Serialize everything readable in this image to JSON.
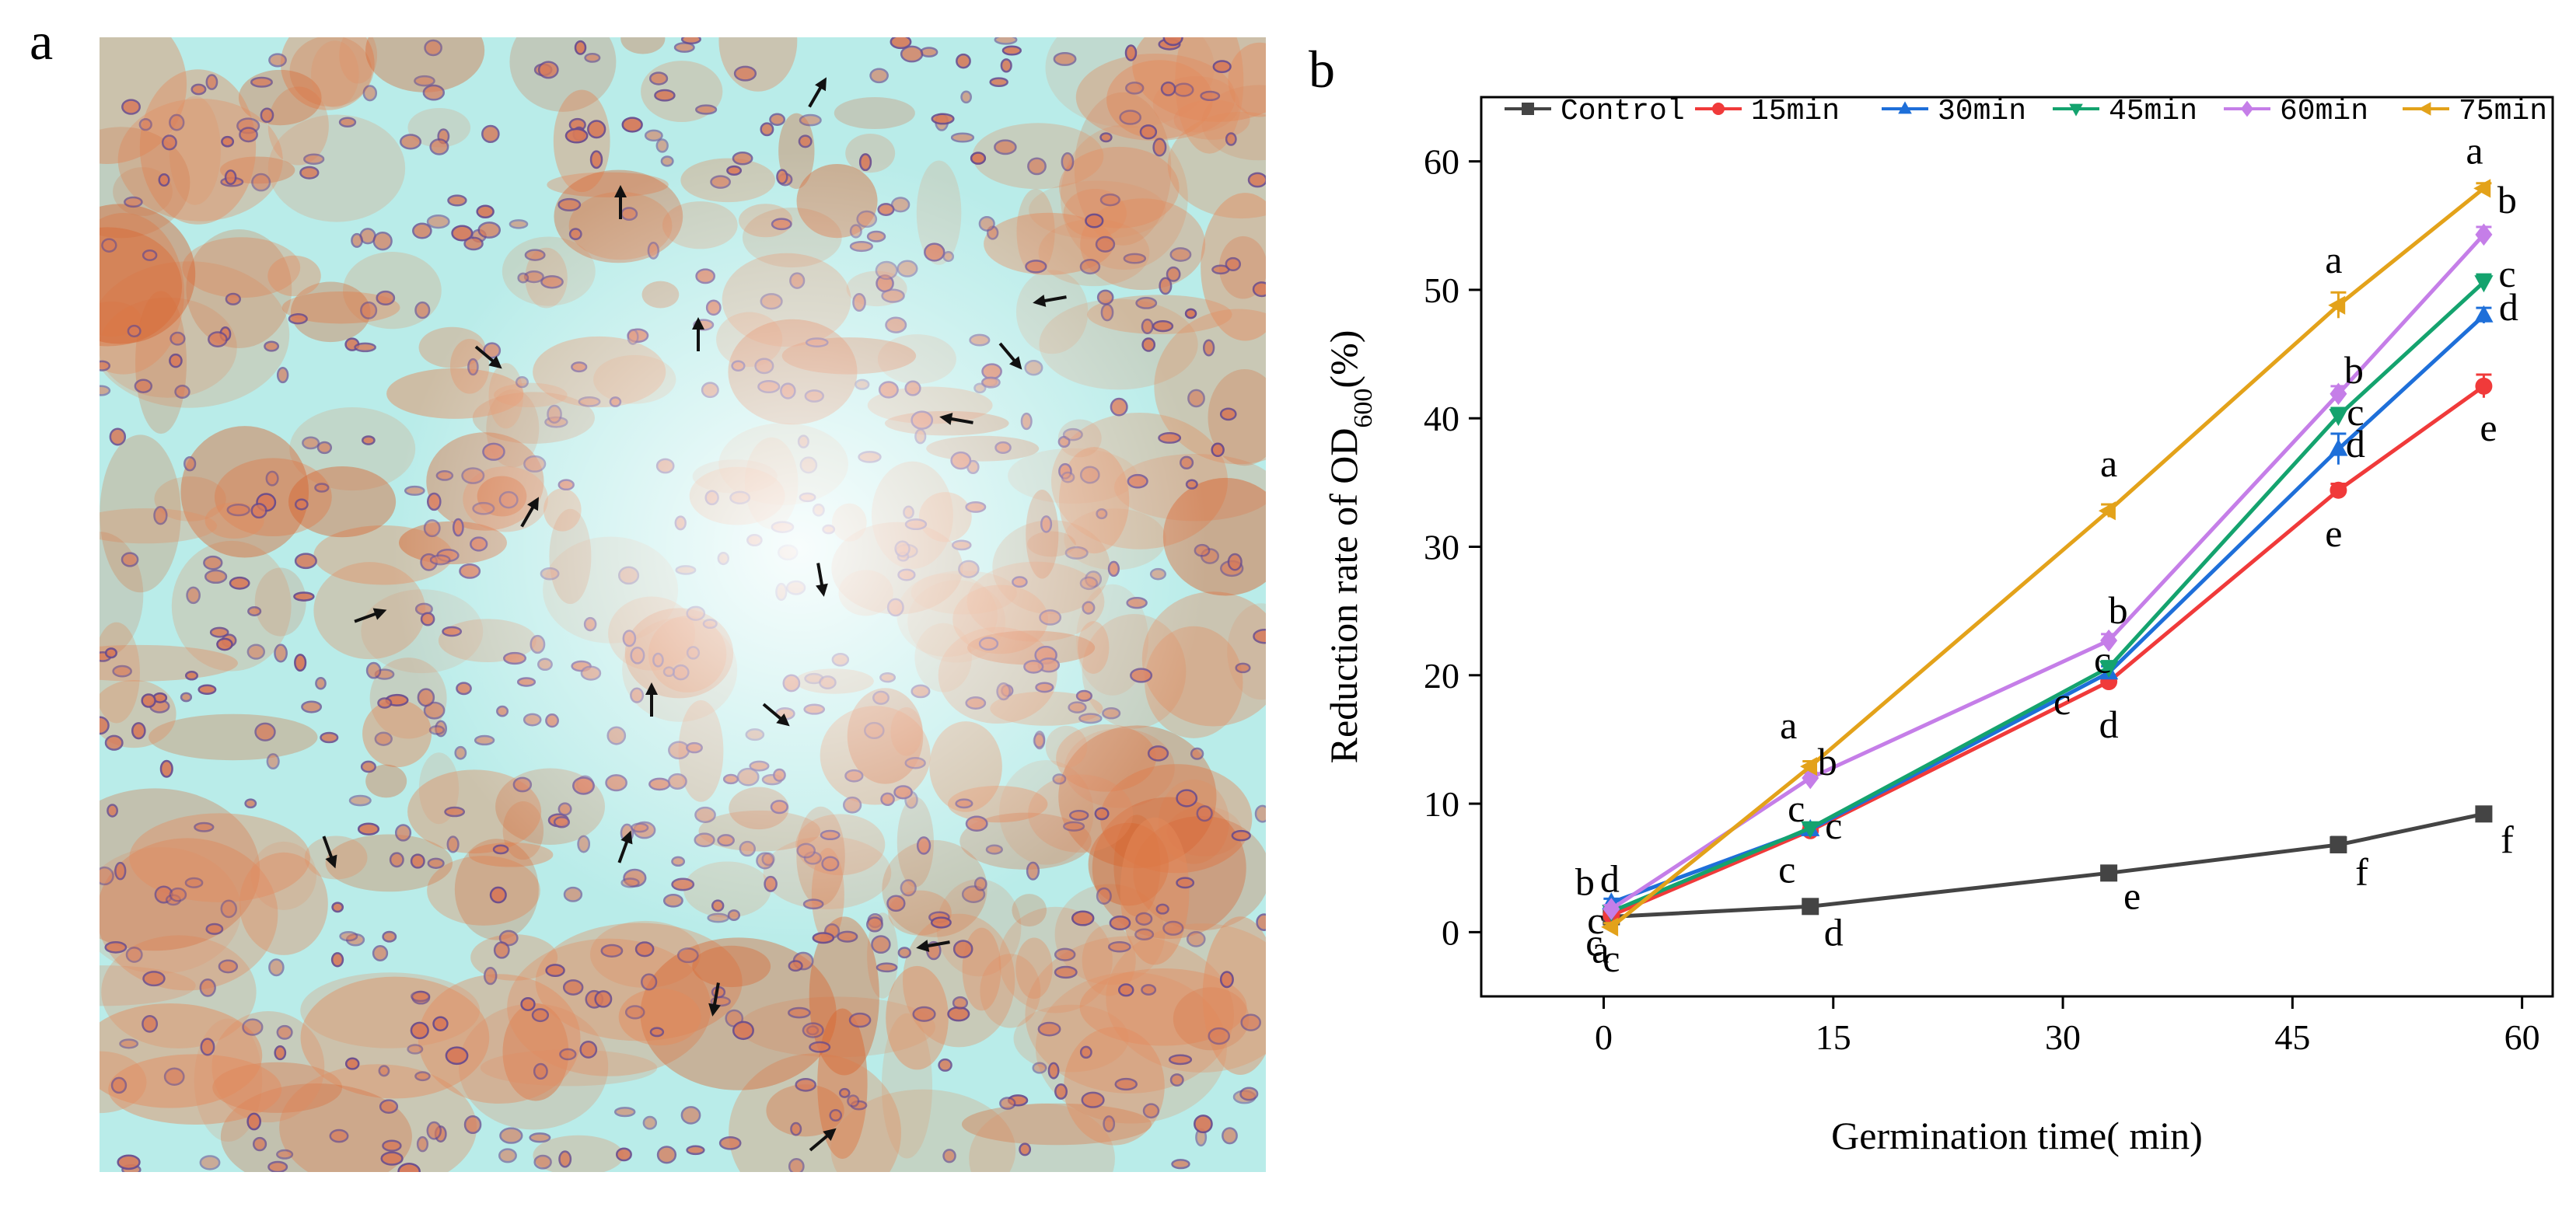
{
  "panels": {
    "a_label": "a",
    "b_label": "b"
  },
  "micrograph": {
    "type": "stained-spore-micrograph",
    "arrow_icon": "arrow-icon",
    "colors": {
      "background": "#b9ece9",
      "stain": "#e48a5c",
      "dense_stain": "#d8622c",
      "spore_outline": "#6a4b8c"
    }
  },
  "chart_data": {
    "type": "line",
    "xlabel": "Germination time( min)",
    "ylabel_main": "Reduction rate of OD",
    "ylabel_sub": "600",
    "ylabel_end": "(%)",
    "xlim": [
      -8,
      62
    ],
    "ylim": [
      -5,
      65
    ],
    "xticks": [
      0,
      15,
      30,
      45,
      60
    ],
    "yticks": [
      0,
      10,
      20,
      30,
      40,
      50,
      60
    ],
    "legend_position": "top",
    "x": [
      0.5,
      13.5,
      33,
      48,
      57.5
    ],
    "series": [
      {
        "name": "Control",
        "color": "#444444",
        "marker": "square",
        "values": [
          1.2,
          2.0,
          4.6,
          6.8,
          9.2
        ],
        "errors": [
          0.3,
          0.3,
          0.4,
          0.6,
          0.5
        ],
        "letters": [
          "c",
          "d",
          "e",
          "f",
          "f"
        ]
      },
      {
        "name": "15min",
        "color": "#f03a3a",
        "marker": "circle",
        "values": [
          1.3,
          7.9,
          19.5,
          34.4,
          42.5
        ],
        "errors": [
          0.3,
          0.4,
          0.5,
          0.5,
          0.9
        ],
        "letters": [
          "c",
          "c",
          "d",
          "e",
          "e"
        ]
      },
      {
        "name": "30min",
        "color": "#1e6fd9",
        "marker": "triangle-up",
        "values": [
          2.3,
          8.0,
          20.2,
          37.6,
          48.0
        ],
        "errors": [
          0.3,
          0.4,
          0.5,
          1.2,
          0.6
        ],
        "letters": [
          "b",
          "c",
          "c",
          "d",
          "d"
        ]
      },
      {
        "name": "45min",
        "color": "#14a36e",
        "marker": "triangle-down",
        "values": [
          1.6,
          8.1,
          20.6,
          40.2,
          50.6
        ],
        "errors": [
          0.3,
          0.4,
          0.5,
          0.6,
          0.6
        ],
        "letters": [
          "c",
          "c",
          "c",
          "c",
          "c"
        ]
      },
      {
        "name": "60min",
        "color": "#c57ee8",
        "marker": "diamond",
        "values": [
          1.8,
          12.0,
          22.7,
          41.9,
          54.3
        ],
        "errors": [
          0.3,
          0.4,
          0.5,
          0.6,
          0.6
        ],
        "letters": [
          "d",
          "b",
          "b",
          "b",
          "b"
        ]
      },
      {
        "name": "75min",
        "color": "#e3a21a",
        "marker": "triangle-left",
        "values": [
          0.4,
          12.9,
          32.8,
          48.8,
          57.9
        ],
        "errors": [
          0.3,
          0.4,
          0.5,
          1.0,
          0.4
        ],
        "letters": [
          "a",
          "a",
          "a",
          "a",
          "a"
        ]
      }
    ]
  }
}
